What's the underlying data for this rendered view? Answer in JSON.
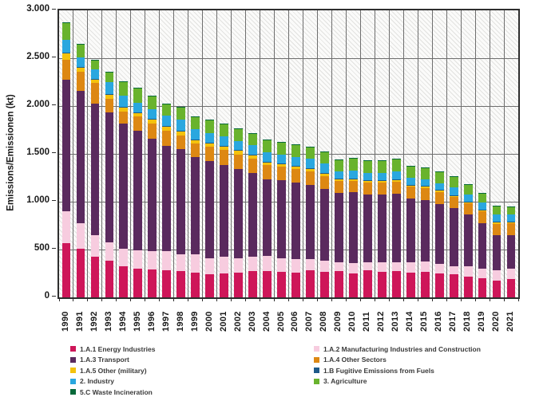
{
  "chart_data": {
    "type": "bar",
    "stacked": true,
    "ylabel": "Emissions/Emissionen (kt)",
    "ylim": [
      0,
      3000
    ],
    "ytick_step": 500,
    "ytick_labels": [
      "0",
      "500",
      "1.000",
      "1.500",
      "2.000",
      "2.500",
      "3.000"
    ],
    "grid": true,
    "legend_position": "bottom",
    "categories": [
      "1990",
      "1991",
      "1992",
      "1993",
      "1994",
      "1995",
      "1996",
      "1997",
      "1998",
      "1999",
      "2000",
      "2001",
      "2002",
      "2003",
      "2004",
      "2005",
      "2006",
      "2007",
      "2008",
      "2009",
      "2010",
      "2011",
      "2012",
      "2013",
      "2014",
      "2015",
      "2016",
      "2017",
      "2018",
      "2019",
      "2020",
      "2021"
    ],
    "series": [
      {
        "name": "1.A.1 Energy Industries",
        "color": "#CE1659",
        "values": [
          567,
          508,
          425,
          383,
          325,
          300,
          292,
          283,
          275,
          258,
          242,
          250,
          258,
          275,
          275,
          267,
          258,
          283,
          267,
          275,
          250,
          283,
          267,
          275,
          258,
          267,
          250,
          242,
          217,
          200,
          175,
          192
        ]
      },
      {
        "name": "1.A.2 Manufacturing Industries and Construction",
        "color": "#F7CCDF",
        "values": [
          333,
          267,
          225,
          192,
          183,
          192,
          193,
          200,
          175,
          192,
          166,
          175,
          150,
          150,
          158,
          141,
          142,
          117,
          116,
          92,
          108,
          84,
          100,
          92,
          109,
          108,
          100,
          83,
          108,
          100,
          108,
          108
        ]
      },
      {
        "name": "1.A.3 Transport",
        "color": "#5A2A5E",
        "values": [
          1374,
          1383,
          1375,
          1358,
          1309,
          1250,
          1173,
          1100,
          1100,
          1017,
          1017,
          958,
          934,
          875,
          800,
          817,
          800,
          775,
          750,
          725,
          742,
          708,
          708,
          718,
          663,
          640,
          625,
          608,
          542,
          475,
          367,
          350
        ]
      },
      {
        "name": "1.A.4 Other Sectors",
        "color": "#DD8813",
        "values": [
          208,
          200,
          217,
          142,
          125,
          150,
          159,
          159,
          142,
          141,
          150,
          159,
          150,
          150,
          150,
          142,
          142,
          142,
          134,
          125,
          117,
          125,
          125,
          125,
          125,
          125,
          125,
          115,
          115,
          123,
          120,
          123
        ]
      },
      {
        "name": "1.A.5 Other (military)",
        "color": "#F4C20C",
        "values": [
          68,
          42,
          33,
          42,
          41,
          33,
          41,
          41,
          41,
          34,
          33,
          33,
          41,
          33,
          25,
          25,
          25,
          25,
          25,
          16,
          16,
          17,
          17,
          17,
          15,
          15,
          15,
          10,
          10,
          10,
          10,
          10
        ]
      },
      {
        "name": "1.B Fugitive Emissions from Fuels",
        "color": "#1E5A89",
        "values": [
          10,
          8,
          8,
          8,
          8,
          8,
          8,
          8,
          8,
          8,
          8,
          8,
          8,
          8,
          8,
          8,
          8,
          8,
          8,
          8,
          8,
          8,
          8,
          8,
          8,
          8,
          8,
          8,
          8,
          8,
          8,
          8
        ]
      },
      {
        "name": "2. Industry",
        "color": "#2AA7DF",
        "values": [
          130,
          100,
          100,
          125,
          117,
          100,
          101,
          109,
          117,
          108,
          104,
          100,
          92,
          101,
          101,
          92,
          92,
          100,
          100,
          76,
          84,
          75,
          75,
          80,
          72,
          72,
          72,
          84,
          75,
          76,
          82,
          79
        ]
      },
      {
        "name": "3. Agriculture",
        "color": "#69B32D",
        "values": [
          180,
          137,
          95,
          103,
          145,
          154,
          136,
          120,
          129,
          129,
          130,
          129,
          129,
          120,
          128,
          128,
          128,
          120,
          120,
          120,
          128,
          128,
          128,
          130,
          120,
          118,
          117,
          112,
          103,
          95,
          80,
          75
        ]
      },
      {
        "name": "5.C Waste Incineration",
        "color": "#07693A",
        "values": [
          5,
          5,
          5,
          5,
          5,
          5,
          5,
          5,
          5,
          5,
          5,
          5,
          5,
          5,
          5,
          5,
          5,
          5,
          5,
          5,
          5,
          5,
          5,
          5,
          5,
          5,
          5,
          5,
          5,
          5,
          5,
          5
        ]
      }
    ]
  }
}
